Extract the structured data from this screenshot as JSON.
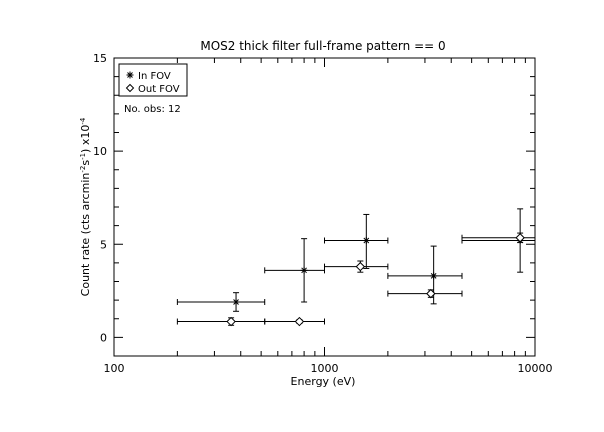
{
  "chart_data": {
    "type": "scatter",
    "title": "MOS2 thick filter full-frame pattern == 0",
    "xlabel": "Energy (eV)",
    "ylabel": {
      "main": "Count rate (cts arcmin",
      "sup1": "-2",
      "mid": "s",
      "sup2": "-1",
      "end": ") x10",
      "sup3": "-4"
    },
    "x_scale": "log",
    "xlim": [
      100,
      10000
    ],
    "ylim": [
      -1,
      15
    ],
    "x_ticks": [
      100,
      1000,
      10000
    ],
    "x_tick_labels": [
      "100",
      "1000",
      "10000"
    ],
    "y_ticks": [
      0,
      5,
      10,
      15
    ],
    "y_tick_labels": [
      "0",
      "5",
      "10",
      "15"
    ],
    "annotation": "No. obs: 12",
    "series": [
      {
        "name": "In FOV",
        "marker": "asterisk",
        "points": [
          {
            "x": 380,
            "xerr": [
              200,
              520
            ],
            "y": 1.9,
            "yerr": [
              1.4,
              2.4
            ]
          },
          {
            "x": 800,
            "xerr": [
              520,
              1000
            ],
            "y": 3.6,
            "yerr": [
              1.9,
              5.3
            ]
          },
          {
            "x": 1580,
            "xerr": [
              1000,
              2000
            ],
            "y": 5.2,
            "yerr": [
              3.7,
              6.6
            ]
          },
          {
            "x": 3300,
            "xerr": [
              2000,
              4500
            ],
            "y": 3.3,
            "yerr": [
              1.8,
              4.9
            ]
          },
          {
            "x": 8500,
            "xerr": [
              4500,
              10000
            ],
            "y": 5.2,
            "yerr": [
              3.5,
              6.9
            ]
          }
        ]
      },
      {
        "name": "Out FOV",
        "marker": "diamond",
        "points": [
          {
            "x": 360,
            "xerr": [
              200,
              520
            ],
            "y": 0.85,
            "yerr": [
              0.65,
              1.05
            ]
          },
          {
            "x": 760,
            "xerr": [
              520,
              1000
            ],
            "y": 0.85,
            "yerr": [
              0.75,
              0.95
            ]
          },
          {
            "x": 1480,
            "xerr": [
              1000,
              2000
            ],
            "y": 3.8,
            "yerr": [
              3.5,
              4.1
            ]
          },
          {
            "x": 3200,
            "xerr": [
              2000,
              4500
            ],
            "y": 2.35,
            "yerr": [
              2.15,
              2.55
            ]
          },
          {
            "x": 8500,
            "xerr": [
              4500,
              10000
            ],
            "y": 5.35,
            "yerr": [
              5.1,
              5.6
            ]
          }
        ]
      }
    ]
  }
}
